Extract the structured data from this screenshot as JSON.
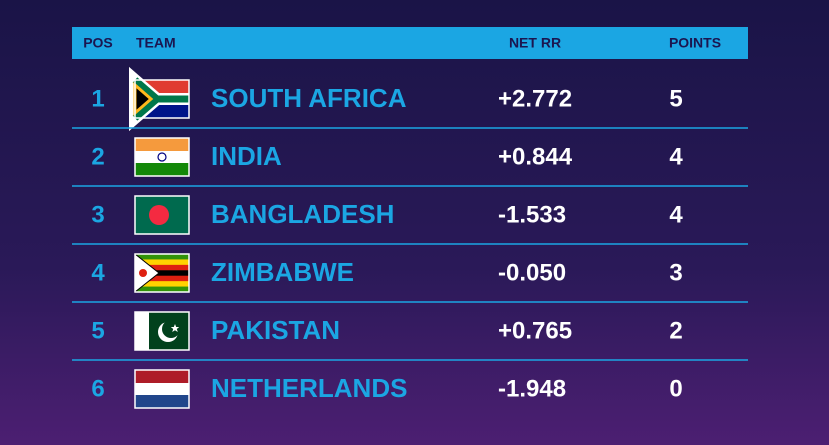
{
  "header": {
    "columns": [
      "POS",
      "TEAM",
      "NET RR",
      "POINTS"
    ]
  },
  "table": {
    "rows": [
      [
        "1",
        "SOUTH AFRICA",
        "+2.772",
        "5"
      ],
      [
        "2",
        "INDIA",
        "+0.844",
        "4"
      ],
      [
        "3",
        "BANGLADESH",
        "-1.533",
        "4"
      ],
      [
        "4",
        "ZIMBABWE",
        "-0.050",
        "3"
      ],
      [
        "5",
        "PAKISTAN",
        "+0.765",
        "2"
      ],
      [
        "6",
        "NETHERLANDS",
        "-1.948",
        "0"
      ]
    ]
  }
}
